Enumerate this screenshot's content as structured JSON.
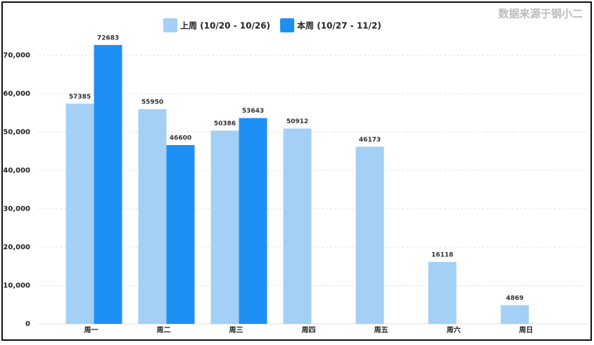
{
  "chart_data": {
    "type": "bar",
    "source": "数据来源于钢小二",
    "categories": [
      "周一",
      "周二",
      "周三",
      "周四",
      "周五",
      "周六",
      "周日"
    ],
    "series": [
      {
        "name": "上周 (10/20 - 10/26)",
        "color": "#a3d0f4",
        "values": [
          57385,
          55950,
          50386,
          50912,
          46173,
          16118,
          4869
        ]
      },
      {
        "name": "本周 (10/27 - 11/2)",
        "color": "#1e8ff5",
        "values": [
          72683,
          46600,
          53643,
          null,
          null,
          null,
          null
        ]
      }
    ],
    "ylim": [
      0,
      80000
    ],
    "yticks": [
      0,
      {
        "value": 10000,
        "label": "10,000"
      },
      {
        "value": 20000,
        "label": "20,000"
      },
      {
        "value": 30000,
        "label": "30,000"
      },
      {
        "value": 40000,
        "label": "40,000"
      },
      {
        "value": 50000,
        "label": "50,000"
      },
      {
        "value": 60000,
        "label": "60,000"
      },
      {
        "value": 70000,
        "label": "70,000"
      }
    ],
    "grid": true,
    "legend": "top"
  }
}
